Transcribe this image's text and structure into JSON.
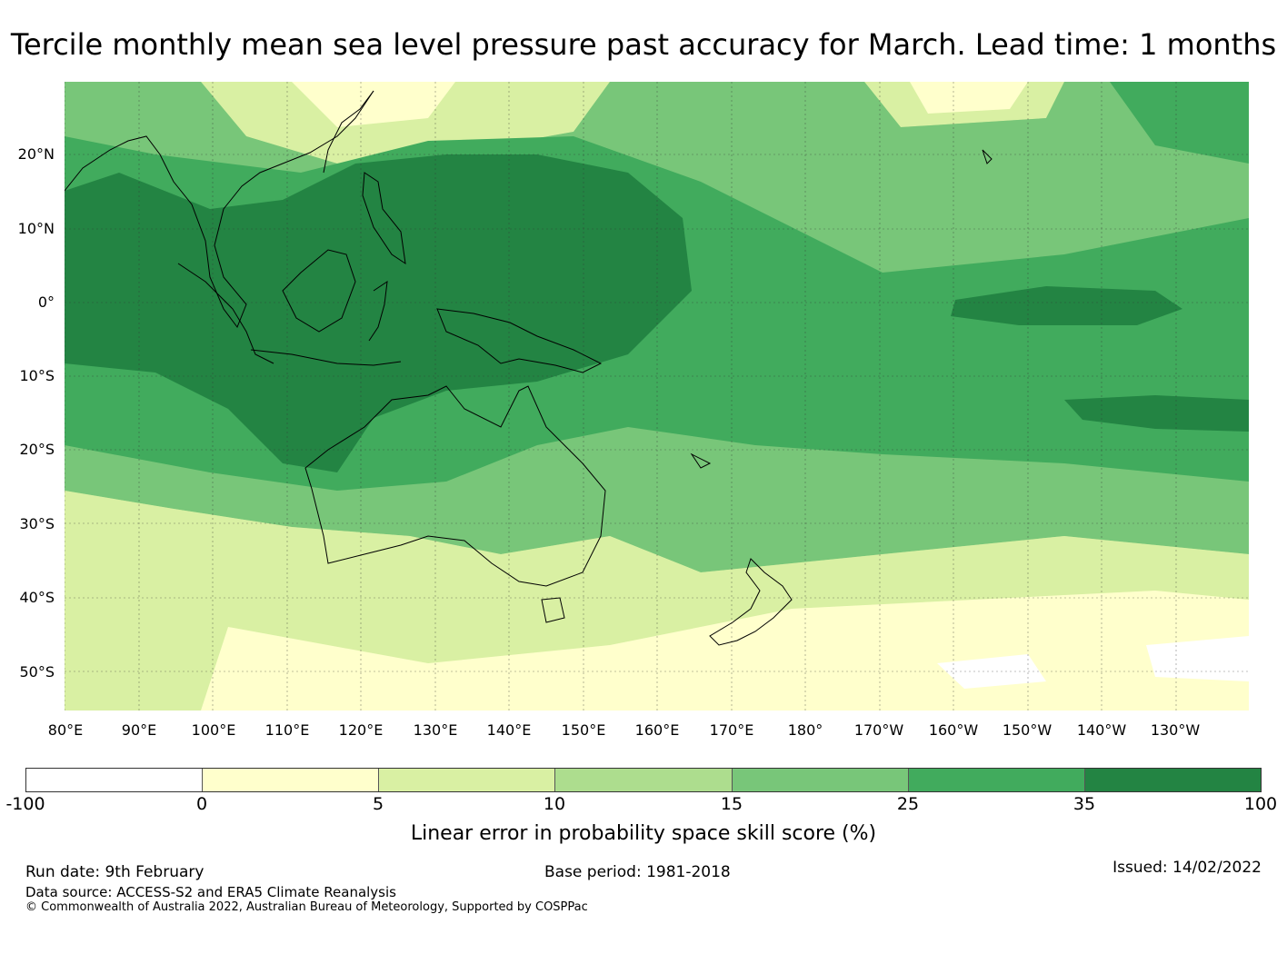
{
  "title": "Tercile monthly mean sea level pressure past accuracy for March. Lead time: 1 months",
  "map": {
    "lat_labels": [
      "20°N",
      "10°N",
      "0°",
      "10°S",
      "20°S",
      "30°S",
      "40°S",
      "50°S"
    ],
    "lon_labels": [
      "80°E",
      "90°E",
      "100°E",
      "110°E",
      "120°E",
      "130°E",
      "140°E",
      "150°E",
      "160°E",
      "170°E",
      "180°",
      "170°W",
      "160°W",
      "150°W",
      "140°W",
      "130°W"
    ]
  },
  "colorbar": {
    "ticks": [
      "-100",
      "0",
      "5",
      "10",
      "15",
      "25",
      "35",
      "100"
    ],
    "colors": [
      "#ffffff",
      "#ffffcc",
      "#d9f0a3",
      "#addd8e",
      "#78c679",
      "#41ab5d",
      "#238443"
    ],
    "label": "Linear error in probability space skill score (%)"
  },
  "footer": {
    "run_date": "Run date: 9th February",
    "base_period": "Base period: 1981-2018",
    "issued": "Issued: 14/02/2022",
    "data_source": "Data source: ACCESS-S2 and ERA5 Climate Reanalysis",
    "copyright": "© Commonwealth of Australia 2022, Australian Bureau of Meteorology, Supported by COSPPac"
  }
}
